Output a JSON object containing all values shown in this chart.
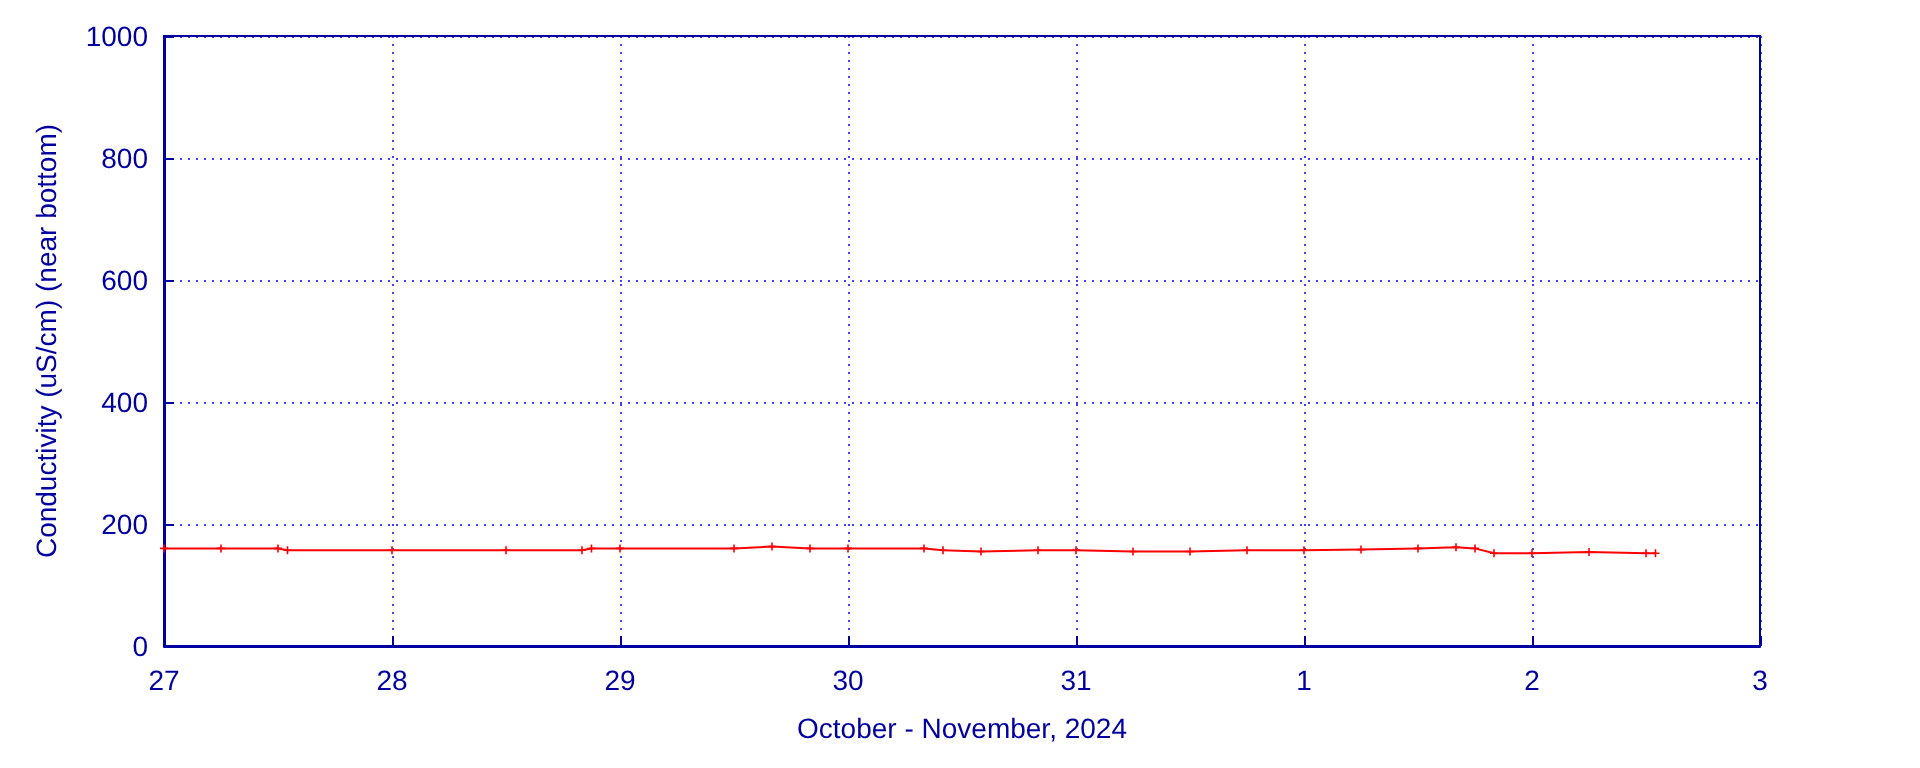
{
  "chart_data": {
    "type": "line",
    "ylabel": "Conductivity (uS/cm) (near bottom)",
    "xlabel": "October - November, 2024",
    "x": [
      "2024-10-27T00:00",
      "2024-10-27T06:00",
      "2024-10-27T12:00",
      "2024-10-27T13:00",
      "2024-10-28T00:00",
      "2024-10-28T12:00",
      "2024-10-28T20:00",
      "2024-10-28T21:00",
      "2024-10-29T00:00",
      "2024-10-29T12:00",
      "2024-10-29T16:00",
      "2024-10-29T20:00",
      "2024-10-30T00:00",
      "2024-10-30T08:00",
      "2024-10-30T10:00",
      "2024-10-30T14:00",
      "2024-10-30T20:00",
      "2024-10-31T00:00",
      "2024-10-31T06:00",
      "2024-10-31T12:00",
      "2024-10-31T18:00",
      "2024-11-01T00:00",
      "2024-11-01T06:00",
      "2024-11-01T12:00",
      "2024-11-01T16:00",
      "2024-11-01T18:00",
      "2024-11-01T20:00",
      "2024-11-02T00:00",
      "2024-11-02T06:00",
      "2024-11-02T12:00",
      "2024-11-02T13:00"
    ],
    "series": [
      {
        "color": "#ff0000",
        "values": [
          160,
          160,
          160,
          157,
          157,
          157,
          157,
          160,
          160,
          160,
          163,
          160,
          160,
          160,
          157,
          155,
          157,
          157,
          155,
          155,
          157,
          157,
          158,
          160,
          162,
          160,
          152,
          152,
          154,
          152,
          152
        ]
      }
    ],
    "xlim": [
      "2024-10-27T00:00",
      "2024-11-03T00:00"
    ],
    "xticks": [
      {
        "value": "2024-10-27T00:00",
        "label": "27"
      },
      {
        "value": "2024-10-28T00:00",
        "label": "28"
      },
      {
        "value": "2024-10-29T00:00",
        "label": "29"
      },
      {
        "value": "2024-10-30T00:00",
        "label": "30"
      },
      {
        "value": "2024-10-31T00:00",
        "label": "31"
      },
      {
        "value": "2024-11-01T00:00",
        "label": "1"
      },
      {
        "value": "2024-11-02T00:00",
        "label": "2"
      },
      {
        "value": "2024-11-03T00:00",
        "label": "3"
      }
    ],
    "ylim": [
      0,
      1000
    ],
    "yticks": [
      0,
      200,
      400,
      600,
      800,
      1000
    ],
    "grid": true,
    "marker": "cross",
    "line_style": "solid"
  }
}
